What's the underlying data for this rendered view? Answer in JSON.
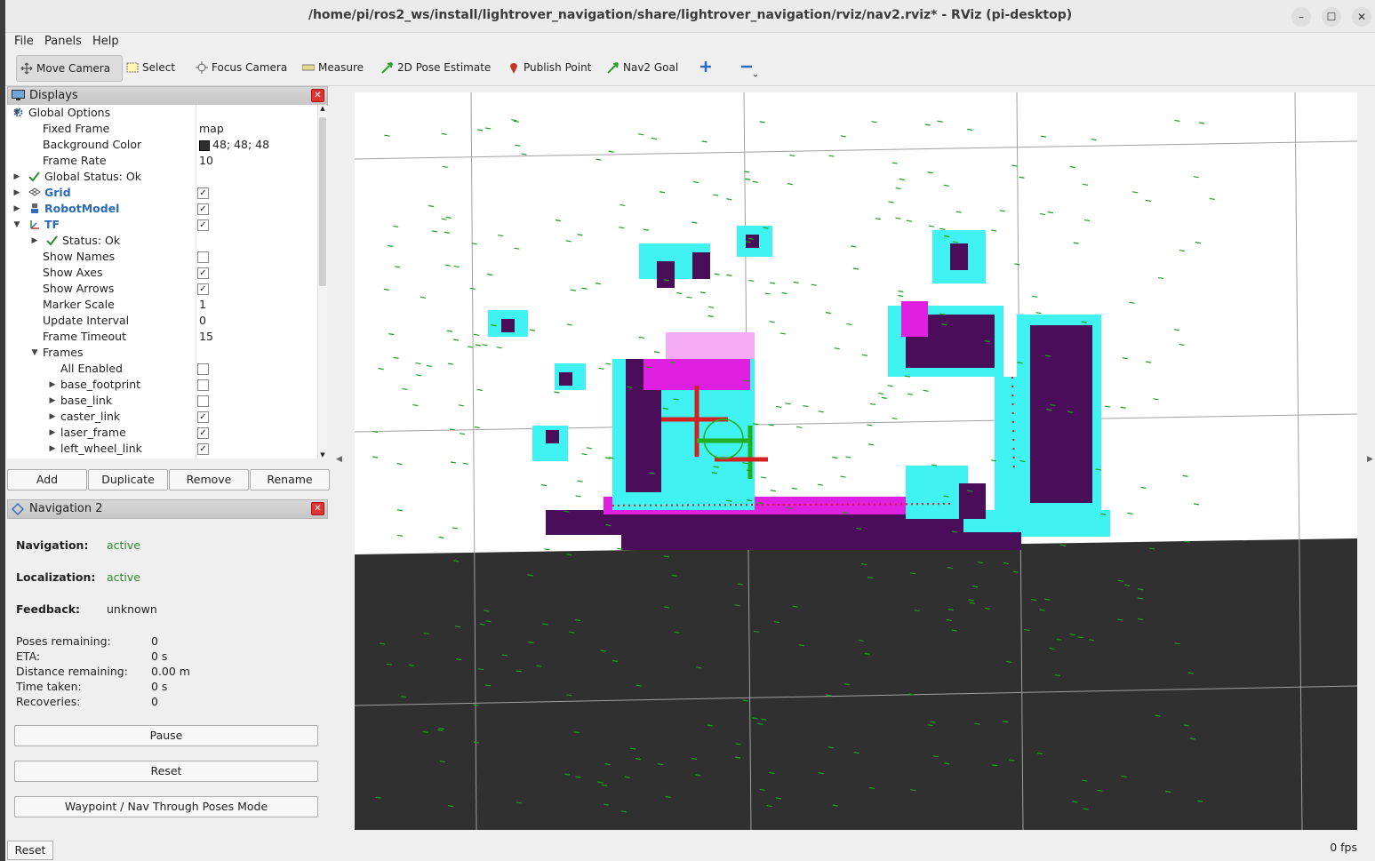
{
  "window": {
    "title": "/home/pi/ros2_ws/install/lightrover_navigation/share/lightrover_navigation/rviz/nav2.rviz* - RViz (pi-desktop)",
    "controls": [
      "–",
      "☐",
      "✕"
    ]
  },
  "menu": [
    "File",
    "Panels",
    "Help"
  ],
  "toolbar": {
    "tools": [
      "Move Camera",
      "Select",
      "Focus Camera",
      "Measure",
      "2D Pose Estimate",
      "Publish Point",
      "Nav2 Goal"
    ],
    "add_icon": "plus-icon",
    "remove_icon": "minus-icon"
  },
  "displays": {
    "title": "Displays",
    "rows": [
      {
        "label": "Global Options",
        "value": ""
      },
      {
        "label": "Fixed Frame",
        "value": "map"
      },
      {
        "label": "Background Color",
        "value": "48; 48; 48"
      },
      {
        "label": "Frame Rate",
        "value": "10"
      },
      {
        "label": "Global Status: Ok",
        "value": ""
      },
      {
        "label": "Grid",
        "value": ""
      },
      {
        "label": "RobotModel",
        "value": ""
      },
      {
        "label": "TF",
        "value": ""
      },
      {
        "label": "Status: Ok",
        "value": ""
      },
      {
        "label": "Show Names",
        "value": ""
      },
      {
        "label": "Show Axes",
        "value": ""
      },
      {
        "label": "Show Arrows",
        "value": ""
      },
      {
        "label": "Marker Scale",
        "value": "1"
      },
      {
        "label": "Update Interval",
        "value": "0"
      },
      {
        "label": "Frame Timeout",
        "value": "15"
      },
      {
        "label": "Frames",
        "value": ""
      },
      {
        "label": "All Enabled",
        "value": ""
      },
      {
        "label": "base_footprint",
        "value": ""
      },
      {
        "label": "base_link",
        "value": ""
      },
      {
        "label": "caster_link",
        "value": ""
      },
      {
        "label": "laser_frame",
        "value": ""
      },
      {
        "label": "left_wheel_link",
        "value": ""
      }
    ],
    "checked": {
      "Grid": true,
      "RobotModel": true,
      "TF": true,
      "Show Names": false,
      "Show Axes": true,
      "Show Arrows": true,
      "All Enabled": false,
      "base_footprint": false,
      "base_link": false,
      "caster_link": true,
      "laser_frame": true,
      "left_wheel_link": true
    },
    "buttons": [
      "Add",
      "Duplicate",
      "Remove",
      "Rename"
    ]
  },
  "navigation": {
    "title": "Navigation 2",
    "navigation_label": "Navigation:",
    "navigation_value": "active",
    "localization_label": "Localization:",
    "localization_value": "active",
    "feedback_label": "Feedback:",
    "feedback_value": "unknown",
    "stats": [
      {
        "label": "Poses remaining:",
        "value": "0"
      },
      {
        "label": "ETA:",
        "value": "0 s"
      },
      {
        "label": "Distance remaining:",
        "value": "0.00 m"
      },
      {
        "label": "Time taken:",
        "value": "0 s"
      },
      {
        "label": "Recoveries:",
        "value": "0"
      }
    ],
    "buttons": [
      "Pause",
      "Reset",
      "Waypoint / Nav Through Poses Mode"
    ]
  },
  "status_bar": {
    "reset": "Reset",
    "fps": "0 fps"
  },
  "colors": {
    "active_green": "#2e8b2e",
    "tree_blue": "#2a6ab8",
    "map_purple": "#4a0d5a",
    "map_cyan": "#40f2f2",
    "map_magenta": "#e020e0",
    "unknown_gray": "#303030"
  }
}
